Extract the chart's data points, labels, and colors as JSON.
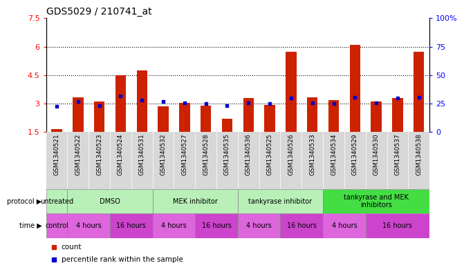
{
  "title": "GDS5029 / 210741_at",
  "samples": [
    "GSM1340521",
    "GSM1340522",
    "GSM1340523",
    "GSM1340524",
    "GSM1340531",
    "GSM1340532",
    "GSM1340527",
    "GSM1340528",
    "GSM1340535",
    "GSM1340536",
    "GSM1340525",
    "GSM1340526",
    "GSM1340533",
    "GSM1340534",
    "GSM1340529",
    "GSM1340530",
    "GSM1340537",
    "GSM1340538"
  ],
  "bar_values": [
    1.65,
    3.35,
    3.1,
    4.5,
    4.75,
    2.85,
    3.05,
    2.9,
    2.2,
    3.3,
    2.95,
    5.75,
    3.35,
    3.2,
    6.1,
    3.1,
    3.3,
    5.75
  ],
  "dot_values_left": [
    2.85,
    3.1,
    2.9,
    3.4,
    3.2,
    3.1,
    3.05,
    3.0,
    2.9,
    3.05,
    3.0,
    3.3,
    3.05,
    3.0,
    3.35,
    3.05,
    3.3,
    3.35
  ],
  "bar_bottom": 1.5,
  "ylim_left": [
    1.5,
    7.5
  ],
  "ylim_right": [
    0,
    100
  ],
  "yticks_left": [
    1.5,
    3.0,
    4.5,
    6.0,
    7.5
  ],
  "ytick_labels_left": [
    "1.5",
    "3",
    "4.5",
    "6",
    "7.5"
  ],
  "yticks_right": [
    0,
    25,
    50,
    75,
    100
  ],
  "ytick_labels_right": [
    "0",
    "25",
    "50",
    "75",
    "100%"
  ],
  "hlines": [
    3.0,
    4.5,
    6.0
  ],
  "bar_color": "#cc2200",
  "dot_color": "#0000cc",
  "title_fontsize": 10,
  "plot_bg_color": "#ffffff",
  "xtick_bg_color": "#d8d8d8",
  "protocol_groups": [
    {
      "label": "untreated",
      "start": 0,
      "end": 1,
      "color": "#b8f0b8"
    },
    {
      "label": "DMSO",
      "start": 1,
      "end": 5,
      "color": "#b8f0b8"
    },
    {
      "label": "MEK inhibitor",
      "start": 5,
      "end": 9,
      "color": "#b8f0b8"
    },
    {
      "label": "tankyrase inhibitor",
      "start": 9,
      "end": 13,
      "color": "#b8f0b8"
    },
    {
      "label": "tankyrase and MEK\ninhibitors",
      "start": 13,
      "end": 18,
      "color": "#44dd44"
    }
  ],
  "time_groups": [
    {
      "label": "control",
      "start": 0,
      "end": 1,
      "color": "#dd66dd"
    },
    {
      "label": "4 hours",
      "start": 1,
      "end": 3,
      "color": "#dd66dd"
    },
    {
      "label": "16 hours",
      "start": 3,
      "end": 5,
      "color": "#cc44cc"
    },
    {
      "label": "4 hours",
      "start": 5,
      "end": 7,
      "color": "#dd66dd"
    },
    {
      "label": "16 hours",
      "start": 7,
      "end": 9,
      "color": "#cc44cc"
    },
    {
      "label": "4 hours",
      "start": 9,
      "end": 11,
      "color": "#dd66dd"
    },
    {
      "label": "16 hours",
      "start": 11,
      "end": 13,
      "color": "#cc44cc"
    },
    {
      "label": "4 hours",
      "start": 13,
      "end": 15,
      "color": "#dd66dd"
    },
    {
      "label": "16 hours",
      "start": 15,
      "end": 18,
      "color": "#cc44cc"
    }
  ]
}
